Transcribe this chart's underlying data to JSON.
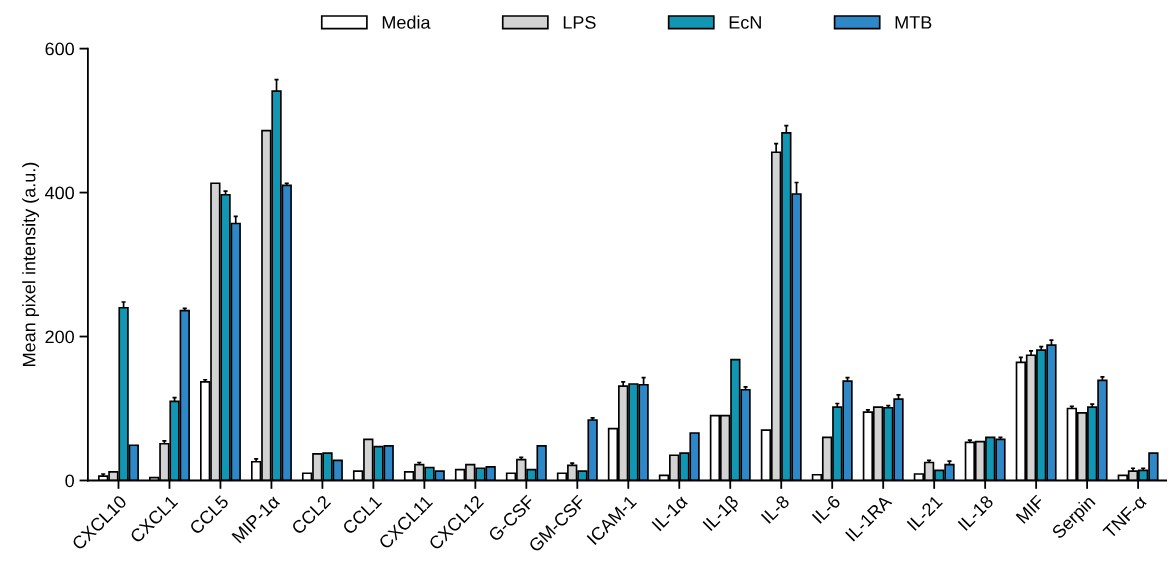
{
  "chart_data": {
    "type": "bar",
    "ylabel": "Mean pixel intensity (a.u.)",
    "categories": [
      "CXCL10",
      "CXCL1",
      "CCL5",
      "MIP-1α",
      "CCL2",
      "CCL1",
      "CXCL11",
      "CXCL12",
      "G-CSF",
      "GM-CSF",
      "ICAM-1",
      "IL-1α",
      "IL-1β",
      "IL-8",
      "IL-6",
      "IL-1RA",
      "IL-21",
      "IL-18",
      "MIF",
      "Serpin",
      "TNF-α"
    ],
    "series": [
      {
        "name": "Media",
        "color": "#ffffff",
        "values": [
          6,
          4,
          137,
          26,
          10,
          13,
          12,
          15,
          10,
          10,
          72,
          7,
          90,
          70,
          8,
          95,
          9,
          53,
          164,
          100,
          7
        ],
        "errors": [
          3,
          null,
          3,
          4,
          null,
          null,
          null,
          null,
          null,
          null,
          null,
          null,
          null,
          null,
          null,
          3,
          null,
          3,
          7,
          3,
          null
        ]
      },
      {
        "name": "LPS",
        "color": "#d3d3d3",
        "values": [
          12,
          51,
          413,
          486,
          37,
          57,
          22,
          22,
          29,
          21,
          131,
          35,
          90,
          456,
          60,
          102,
          25,
          54,
          174,
          94,
          13
        ],
        "errors": [
          null,
          4,
          null,
          null,
          null,
          null,
          3,
          null,
          3,
          3,
          6,
          null,
          null,
          12,
          null,
          null,
          3,
          null,
          6,
          null,
          4
        ]
      },
      {
        "name": "EcN",
        "color": "#1197b3",
        "values": [
          240,
          110,
          397,
          541,
          38,
          47,
          18,
          17,
          15,
          13,
          134,
          38,
          168,
          483,
          102,
          101,
          14,
          60,
          181,
          102,
          14
        ],
        "errors": [
          8,
          5,
          5,
          16,
          null,
          null,
          null,
          null,
          null,
          null,
          null,
          null,
          null,
          10,
          5,
          3,
          null,
          null,
          5,
          4,
          3
        ]
      },
      {
        "name": "MTB",
        "color": "#2e88c8",
        "values": [
          49,
          236,
          357,
          410,
          28,
          48,
          13,
          19,
          48,
          84,
          133,
          66,
          126,
          398,
          138,
          113,
          22,
          57,
          188,
          139,
          38
        ],
        "errors": [
          null,
          3,
          10,
          3,
          null,
          null,
          null,
          null,
          null,
          3,
          10,
          null,
          4,
          16,
          5,
          6,
          5,
          3,
          7,
          5,
          null
        ]
      }
    ],
    "ylim": [
      0,
      600
    ],
    "yticks": [
      0,
      200,
      400,
      600
    ],
    "grid": false,
    "legend": "top"
  }
}
